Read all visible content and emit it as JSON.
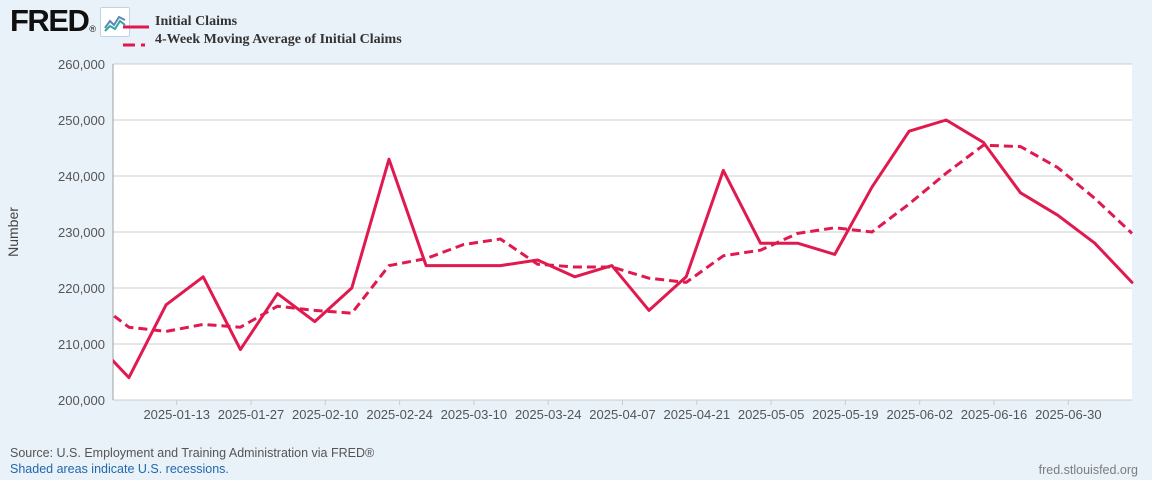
{
  "header": {
    "logo_text": "FRED",
    "logo_reg_mark": "®",
    "legend": [
      {
        "label": "Initial Claims",
        "style": "solid"
      },
      {
        "label": "4-Week Moving Average of Initial Claims",
        "style": "dashed"
      }
    ]
  },
  "footer": {
    "source_text": "Source: U.S. Employment and Training Administration via FRED®",
    "recession_note": "Shaded areas indicate U.S. recessions.",
    "site_link": "fred.stlouisfed.org"
  },
  "colors": {
    "series_red": "#e0194f",
    "page_background": "#e9f1f9",
    "plot_background": "#ffffff",
    "gridline": "#cccccc",
    "axis_line": "#9ba1a7",
    "tick_text": "#555555",
    "legend_text": "#333333",
    "link_blue": "#2268ad"
  },
  "chart_data": {
    "type": "line",
    "title": "",
    "xlabel": "",
    "ylabel": "Number",
    "ylim": [
      200000,
      260000
    ],
    "y_ticks": [
      200000,
      210000,
      220000,
      230000,
      240000,
      250000,
      260000
    ],
    "grid": "horizontal",
    "legend_position": "top-left",
    "x_axis": {
      "start": "2025-01-01",
      "end": "2025-07-12",
      "tick_labels": [
        "2025-01-13",
        "2025-01-27",
        "2025-02-10",
        "2025-02-24",
        "2025-03-10",
        "2025-03-24",
        "2025-04-07",
        "2025-04-21",
        "2025-05-05",
        "2025-05-19",
        "2025-06-02",
        "2025-06-16",
        "2025-06-30"
      ]
    },
    "dates": [
      "2024-12-28",
      "2025-01-04",
      "2025-01-11",
      "2025-01-18",
      "2025-01-25",
      "2025-02-01",
      "2025-02-08",
      "2025-02-15",
      "2025-02-22",
      "2025-03-01",
      "2025-03-08",
      "2025-03-15",
      "2025-03-22",
      "2025-03-29",
      "2025-04-05",
      "2025-04-12",
      "2025-04-19",
      "2025-04-26",
      "2025-05-03",
      "2025-05-10",
      "2025-05-17",
      "2025-05-24",
      "2025-05-31",
      "2025-06-07",
      "2025-06-14",
      "2025-06-21",
      "2025-06-28",
      "2025-07-05",
      "2025-07-12"
    ],
    "series": [
      {
        "name": "Initial Claims",
        "style": "solid",
        "values": [
          211000,
          204000,
          217000,
          222000,
          209000,
          219000,
          214000,
          220000,
          243000,
          224000,
          224000,
          224000,
          225000,
          222000,
          224000,
          216000,
          222000,
          241000,
          228000,
          228000,
          226000,
          238000,
          248000,
          250000,
          246000,
          237000,
          233000,
          228000,
          221000
        ]
      },
      {
        "name": "4-Week Moving Average of Initial Claims",
        "style": "dashed",
        "values": [
          218000,
          213000,
          212250,
          213500,
          213000,
          216750,
          216000,
          215500,
          224000,
          225250,
          227750,
          228750,
          224250,
          223750,
          223750,
          221750,
          221000,
          225750,
          226750,
          229750,
          230750,
          230000,
          235000,
          240500,
          245500,
          245250,
          241500,
          236000,
          229750
        ]
      }
    ]
  }
}
